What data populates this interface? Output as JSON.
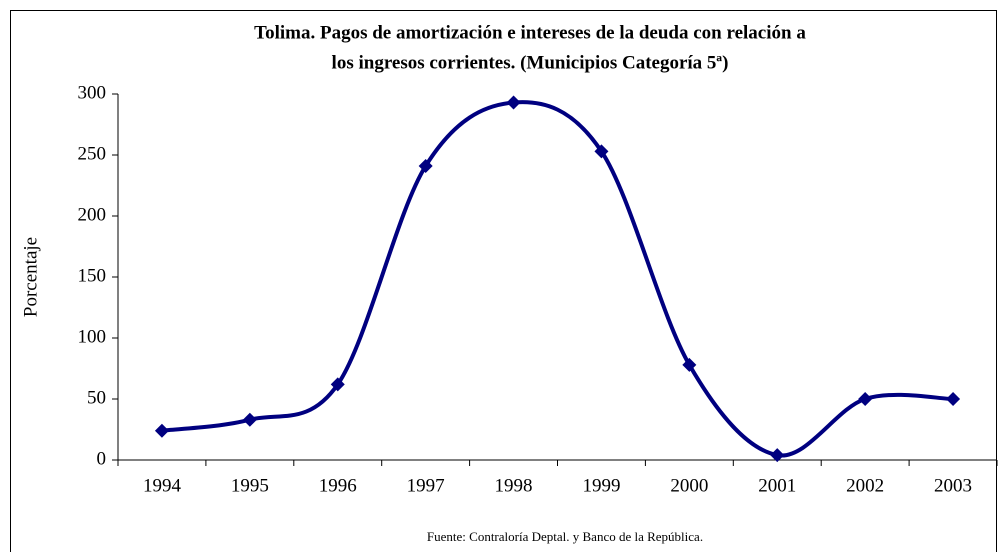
{
  "chart_data": {
    "type": "line",
    "title": [
      "Tolima. Pagos de amortización e intereses de la deuda con relación a",
      "los ingresos corrientes. (Municipios Categoría 5ª)"
    ],
    "y_label": "Porcentaje",
    "source": "Fuente: Contraloría Deptal. y Banco de la República.",
    "categories": [
      "1994",
      "1995",
      "1996",
      "1997",
      "1998",
      "1999",
      "2000",
      "2001",
      "2002",
      "2003"
    ],
    "series": [
      {
        "name": "Porcentaje",
        "color": "#000080",
        "values": [
          24,
          33,
          62,
          241,
          293,
          253,
          78,
          4,
          50,
          50
        ]
      }
    ],
    "ylim": [
      0,
      300
    ],
    "yticks": [
      0,
      50,
      100,
      150,
      200,
      250,
      300
    ],
    "grid": false,
    "smooth": true
  }
}
